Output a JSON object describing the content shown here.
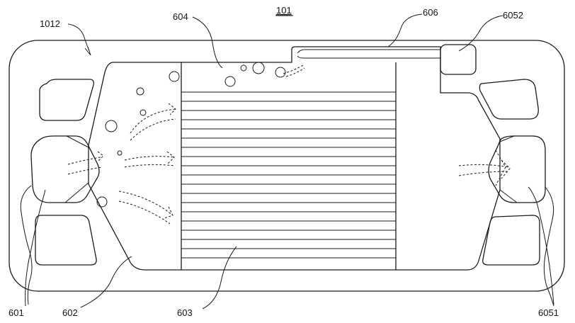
{
  "figure": {
    "reference_numeral": "101",
    "labels": {
      "outer_frame": "1012",
      "bubbles": "604",
      "channel": "606",
      "top_port": "6052",
      "inlet": "601",
      "inlet_distribution_zone": "602",
      "flow_field": "603",
      "outlet": "6051"
    }
  }
}
